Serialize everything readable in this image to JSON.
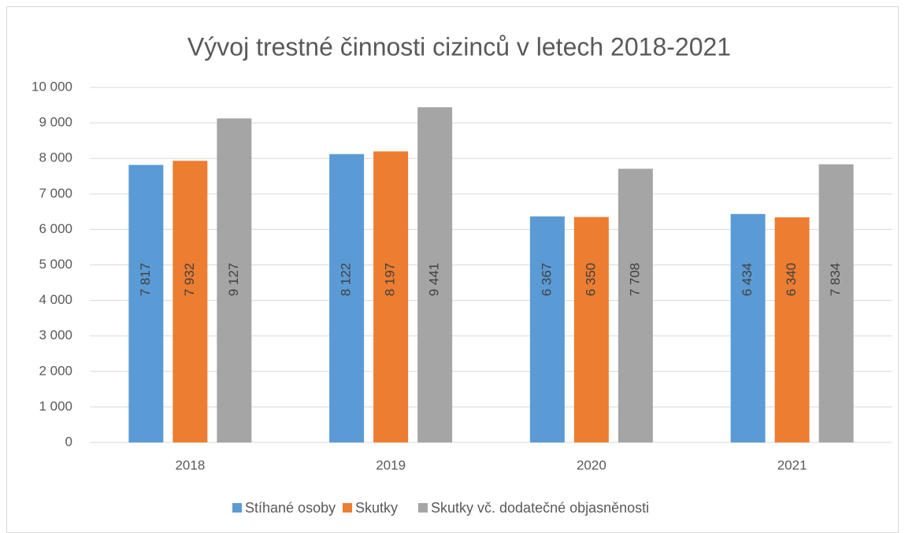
{
  "chart_data": {
    "type": "bar",
    "title": "Vývoj trestné činnosti cizinců v letech 2018-2021",
    "categories": [
      "2018",
      "2019",
      "2020",
      "2021"
    ],
    "series": [
      {
        "name": "Stíhané osoby",
        "color": "#5b9bd5",
        "values": [
          7817,
          8122,
          6367,
          6434
        ],
        "value_labels": [
          "7 817",
          "8 122",
          "6 367",
          "6 434"
        ]
      },
      {
        "name": "Skutky",
        "color": "#ed7d31",
        "values": [
          7932,
          8197,
          6350,
          6340
        ],
        "value_labels": [
          "7 932",
          "8 197",
          "6 350",
          "6 340"
        ]
      },
      {
        "name": "Skutky vč. dodatečné objasněnosti",
        "color": "#a5a5a5",
        "values": [
          9127,
          9441,
          7708,
          7834
        ],
        "value_labels": [
          "9 127",
          "9 441",
          "7 708",
          "7 834"
        ]
      }
    ],
    "ylim": [
      0,
      10000
    ],
    "yticks": [
      0,
      {
        "value": 1000,
        "label": "1 000"
      },
      {
        "value": 2000,
        "label": "2 000"
      },
      {
        "value": 3000,
        "label": "3 000"
      },
      {
        "value": 4000,
        "label": "4 000"
      },
      {
        "value": 5000,
        "label": "5 000"
      },
      {
        "value": 6000,
        "label": "6 000"
      },
      {
        "value": 7000,
        "label": "7 000"
      },
      {
        "value": 8000,
        "label": "8 000"
      },
      {
        "value": 9000,
        "label": "9 000"
      },
      {
        "value": 10000,
        "label": "10 000"
      }
    ],
    "grid": true,
    "legend": "bottom"
  }
}
